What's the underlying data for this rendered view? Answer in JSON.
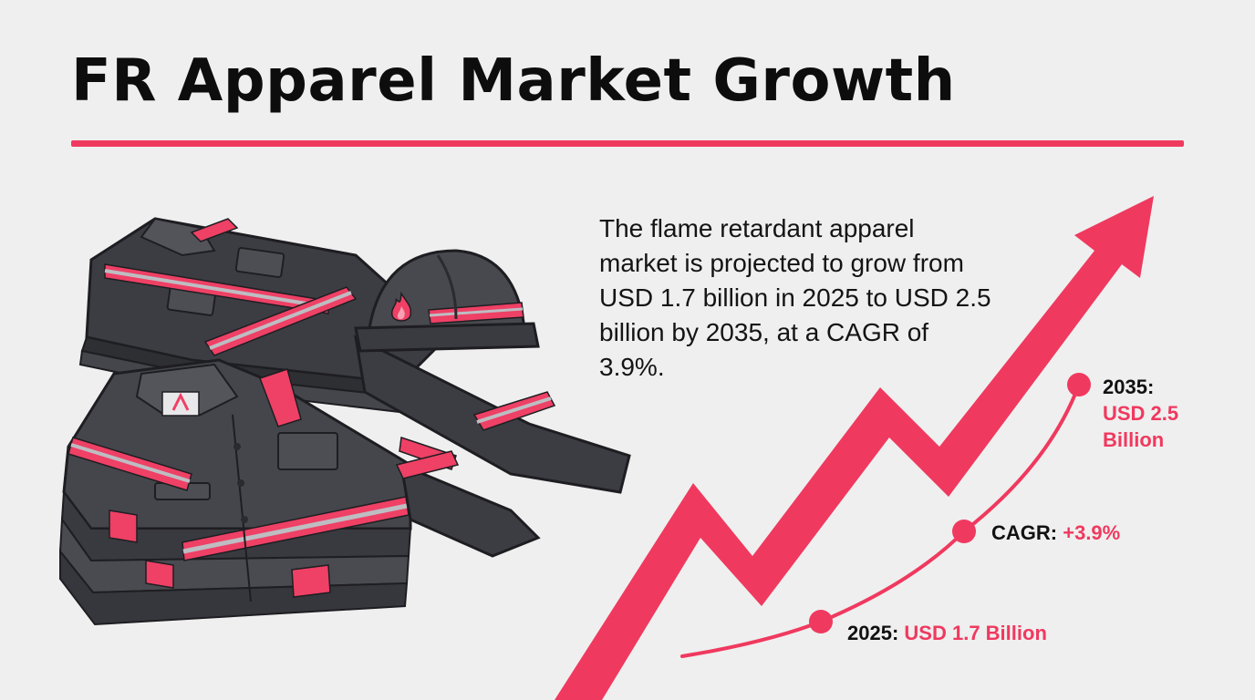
{
  "title": "FR Apparel Market Growth",
  "description": "The flame retardant apparel market is projected to grow from USD 1.7 billion in 2025 to USD 2.5 billion by 2035, at a CAGR of 3.9%.",
  "milestones": {
    "end": {
      "key": "2035:",
      "value_line1": "USD 2.5",
      "value_line2": "Billion"
    },
    "cagr": {
      "key": "CAGR:",
      "value": "+3.9%"
    },
    "start": {
      "key": "2025:",
      "value": "USD 1.7 Billion"
    }
  },
  "colors": {
    "accent": "#f0395f",
    "accent_dark": "#d42b50",
    "fabric": "#4a4b50",
    "fabric_dark": "#2e2f33",
    "reflective": "#b8b8bc"
  },
  "icons": [
    "fire-icon",
    "growth-arrow-icon"
  ]
}
